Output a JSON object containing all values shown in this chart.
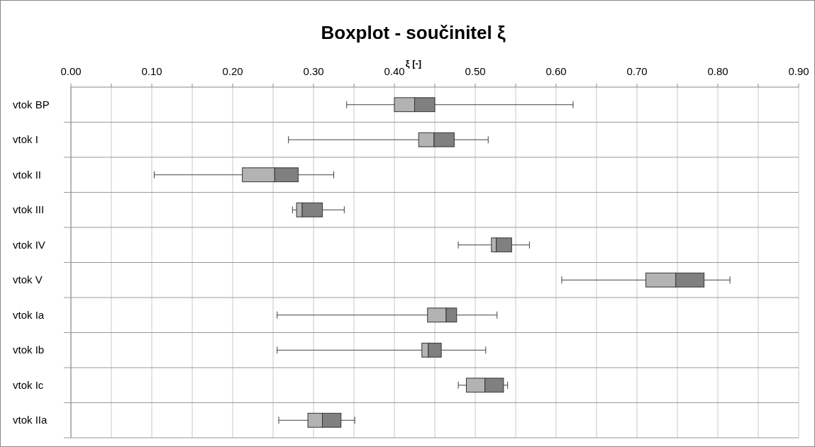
{
  "chart_data": {
    "type": "box",
    "orientation": "horizontal",
    "title": "Boxplot - součinitel ξ",
    "xlabel": "ξ [-]",
    "categories": [
      "vtok BP",
      "vtok I",
      "vtok II",
      "vtok III",
      "vtok IV",
      "vtok V",
      "vtok Ia",
      "vtok Ib",
      "vtok Ic",
      "vtok IIa"
    ],
    "series": [
      {
        "color": "#b3b3b3",
        "boxes": [
          {
            "low": 0.341,
            "q1": 0.4,
            "median": 0.425,
            "q3": 0.45,
            "high": 0.621
          },
          {
            "low": 0.269,
            "q1": 0.43,
            "median": 0.449,
            "q3": 0.474,
            "high": 0.516
          },
          {
            "low": 0.103,
            "q1": 0.212,
            "median": 0.252,
            "q3": 0.281,
            "high": 0.325
          },
          {
            "low": 0.274,
            "q1": 0.279,
            "median": 0.286,
            "q3": 0.311,
            "high": 0.338
          },
          {
            "low": 0.479,
            "q1": 0.52,
            "median": 0.526,
            "q3": 0.545,
            "high": 0.567
          },
          {
            "low": 0.607,
            "q1": 0.711,
            "median": 0.748,
            "q3": 0.783,
            "high": 0.815
          },
          {
            "low": 0.255,
            "q1": 0.441,
            "median": 0.464,
            "q3": 0.477,
            "high": 0.527
          },
          {
            "low": 0.255,
            "q1": 0.434,
            "median": 0.442,
            "q3": 0.458,
            "high": 0.513
          },
          {
            "low": 0.479,
            "q1": 0.489,
            "median": 0.512,
            "q3": 0.535,
            "high": 0.54
          },
          {
            "low": 0.257,
            "q1": 0.293,
            "median": 0.311,
            "q3": 0.334,
            "high": 0.351
          }
        ]
      }
    ],
    "colors": [
      "#808080",
      "#808080",
      "#808080",
      "#808080",
      "#808080",
      "#808080",
      "#808080",
      "#808080",
      "#808080",
      "#808080"
    ],
    "xlim": [
      0,
      0.9
    ],
    "xticks": [
      {
        "value": 0,
        "label": "0.00"
      },
      {
        "value": 0.05,
        "label": null
      },
      {
        "value": 0.1,
        "label": "0.10"
      },
      {
        "value": 0.15,
        "label": null
      },
      {
        "value": 0.2,
        "label": "0.20"
      },
      {
        "value": 0.25,
        "label": null
      },
      {
        "value": 0.3,
        "label": "0.30"
      },
      {
        "value": 0.35,
        "label": null
      },
      {
        "value": 0.4,
        "label": "0.40"
      },
      {
        "value": 0.45,
        "label": null
      },
      {
        "value": 0.5,
        "label": "0.50"
      },
      {
        "value": 0.55,
        "label": null
      },
      {
        "value": 0.6,
        "label": "0.60"
      },
      {
        "value": 0.65,
        "label": null
      },
      {
        "value": 0.7,
        "label": "0.70"
      },
      {
        "value": 0.75,
        "label": null
      },
      {
        "value": 0.8,
        "label": "0.80"
      },
      {
        "value": 0.85,
        "label": null
      },
      {
        "value": 0.9,
        "label": "0.90"
      }
    ],
    "grid": true
  }
}
